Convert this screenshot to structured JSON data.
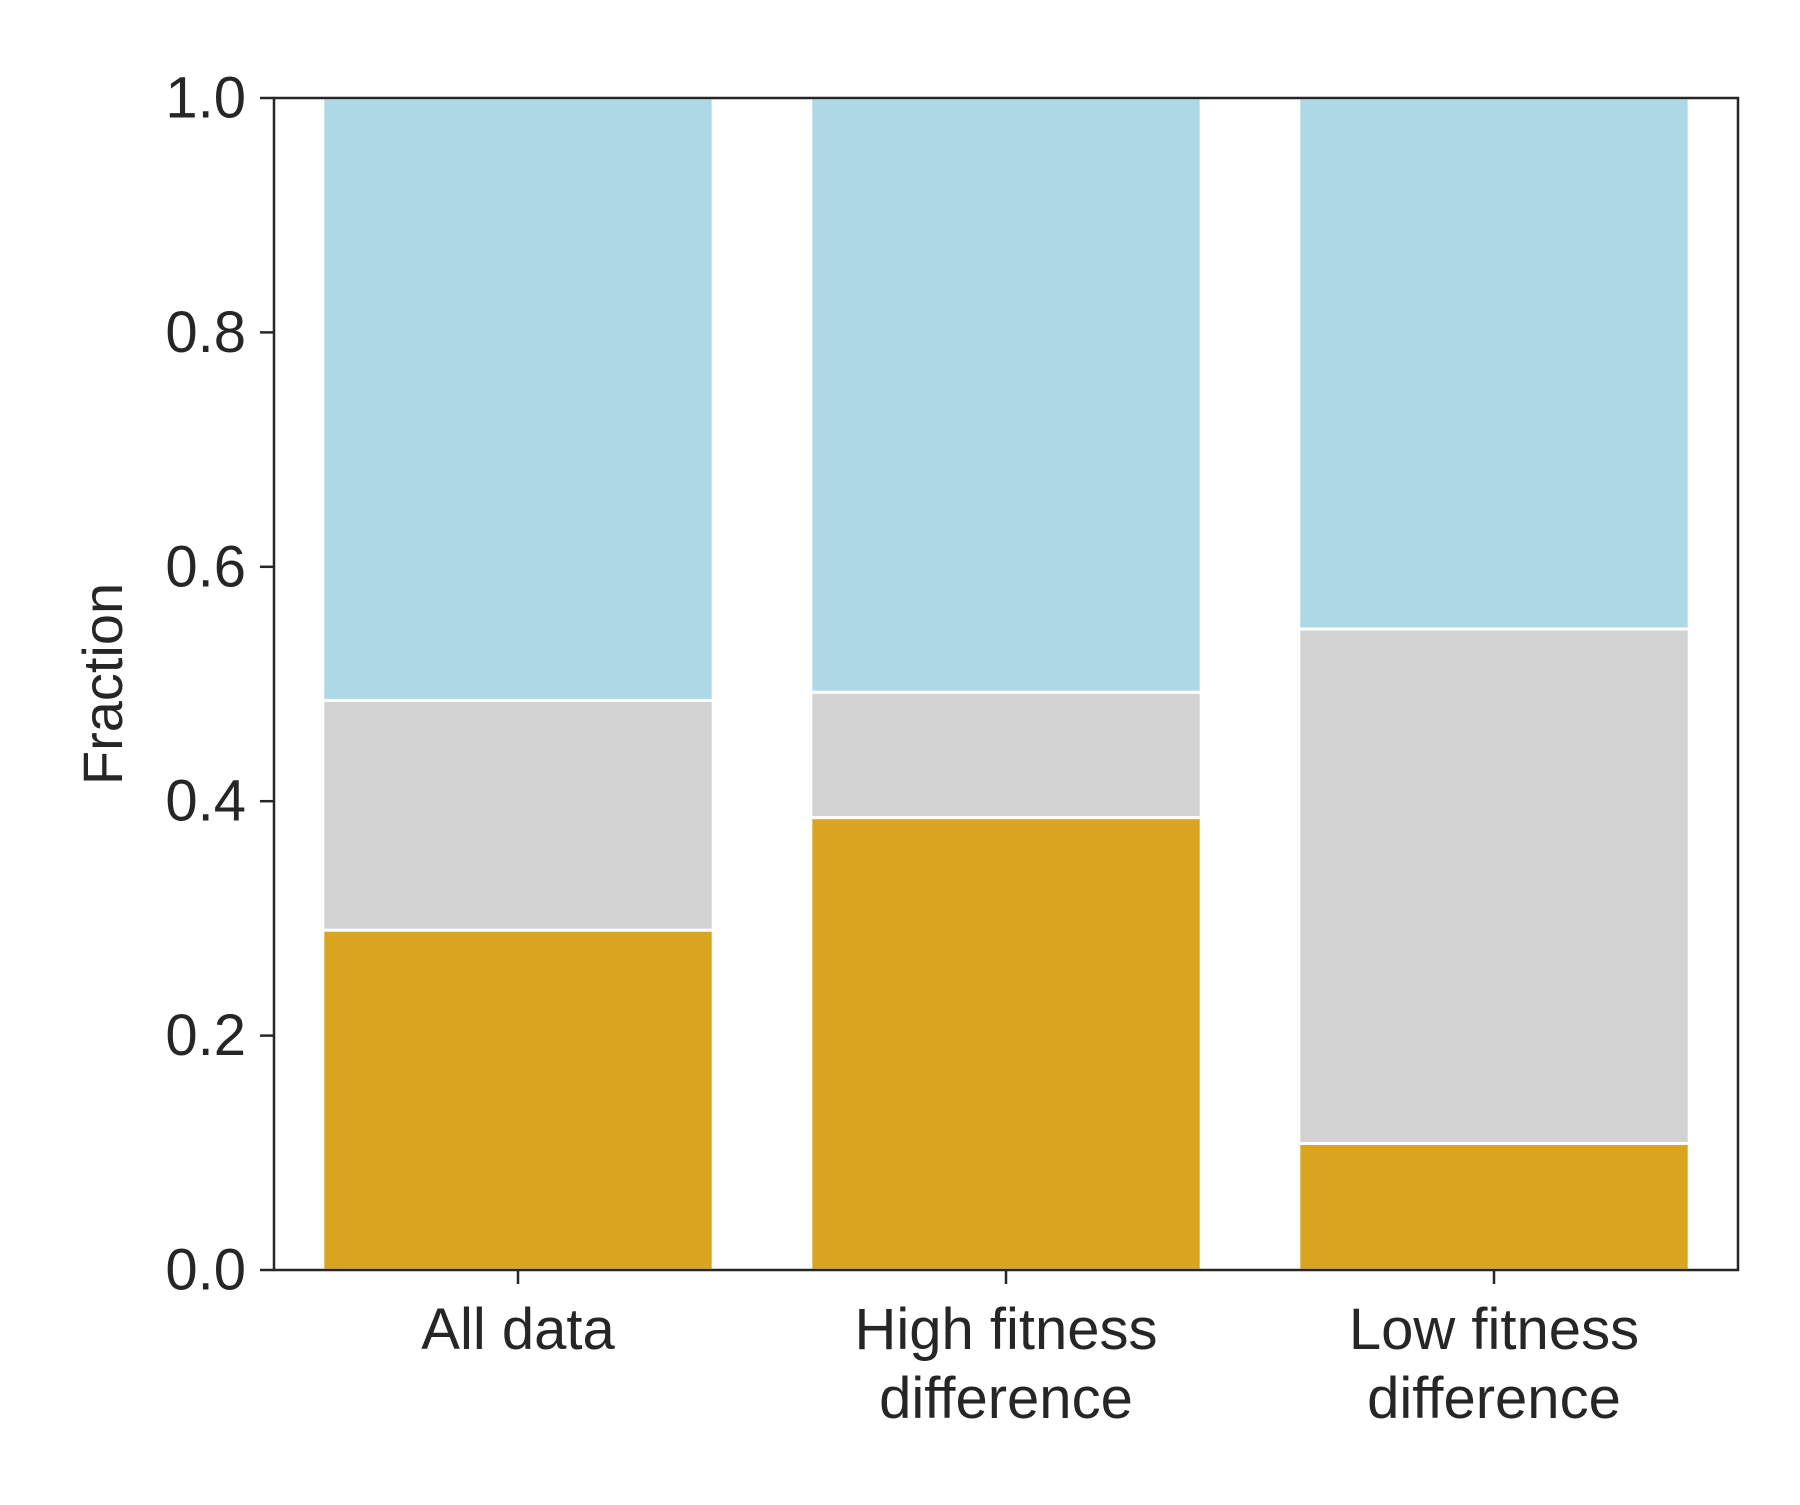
{
  "chart_data": {
    "type": "bar",
    "stacked": true,
    "categories": [
      [
        "All data"
      ],
      [
        "High fitness",
        "difference"
      ],
      [
        "Low fitness",
        "difference"
      ]
    ],
    "series": [
      {
        "color": "#d9a521",
        "values": [
          0.29,
          0.386,
          0.108
        ]
      },
      {
        "color": "#d3d3d3",
        "values": [
          0.196,
          0.107,
          0.439
        ]
      },
      {
        "color": "#add8e6",
        "values": [
          0.514,
          0.507,
          0.453
        ]
      }
    ],
    "ylabel": "Fraction",
    "xlabel": "",
    "title": "",
    "ylim": [
      0,
      1.0
    ],
    "yticks": [
      0.0,
      0.2,
      0.4,
      0.6,
      0.8,
      1.0
    ],
    "ytick_labels": [
      "0.0",
      "0.2",
      "0.4",
      "0.6",
      "0.8",
      "1.0"
    ],
    "grid": false,
    "legend": "none",
    "axis_color": "#262626",
    "bar_edge_color": "#ffffff"
  }
}
